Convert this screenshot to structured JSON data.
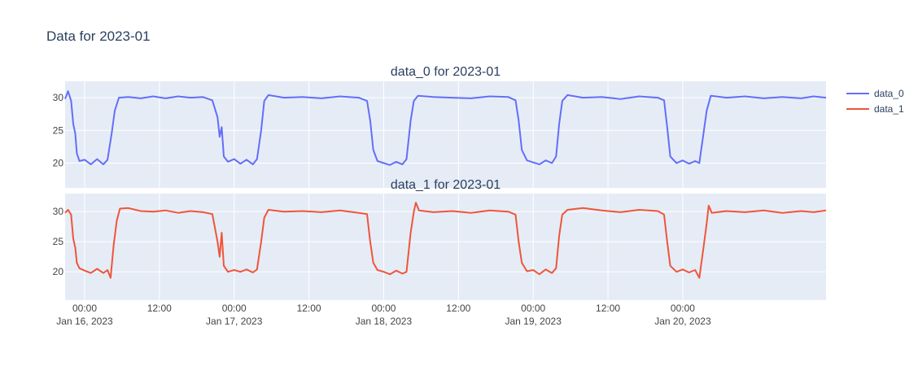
{
  "title": "Data for 2023-01",
  "chart_data": {
    "type": "line",
    "x_range": [
      "2023-01-15T20:52",
      "2023-01-20T23:00"
    ],
    "x_ticks": [
      {
        "t": "2023-01-16T00:00",
        "label": "00:00",
        "date": "Jan 16, 2023"
      },
      {
        "t": "2023-01-16T12:00",
        "label": "12:00",
        "date": ""
      },
      {
        "t": "2023-01-17T00:00",
        "label": "00:00",
        "date": "Jan 17, 2023"
      },
      {
        "t": "2023-01-17T12:00",
        "label": "12:00",
        "date": ""
      },
      {
        "t": "2023-01-18T00:00",
        "label": "00:00",
        "date": "Jan 18, 2023"
      },
      {
        "t": "2023-01-18T12:00",
        "label": "12:00",
        "date": ""
      },
      {
        "t": "2023-01-19T00:00",
        "label": "00:00",
        "date": "Jan 19, 2023"
      },
      {
        "t": "2023-01-19T12:00",
        "label": "12:00",
        "date": ""
      },
      {
        "t": "2023-01-20T00:00",
        "label": "00:00",
        "date": "Jan 20, 2023"
      }
    ],
    "y_ticks": [
      20,
      25,
      30
    ],
    "grid": true,
    "legend_position": "top-right",
    "subplots": [
      {
        "title": "data_0 for 2023-01",
        "ylim": [
          16.2,
          32.5
        ],
        "series": {
          "name": "data_0",
          "color": "#636efa",
          "points": [
            [
              "2023-01-15T20:52",
              29.8
            ],
            [
              "2023-01-15T21:20",
              31.0
            ],
            [
              "2023-01-15T21:50",
              29.5
            ],
            [
              "2023-01-15T22:10",
              26.0
            ],
            [
              "2023-01-15T22:30",
              24.5
            ],
            [
              "2023-01-15T22:45",
              21.5
            ],
            [
              "2023-01-15T23:10",
              20.3
            ],
            [
              "2023-01-16T00:00",
              20.5
            ],
            [
              "2023-01-16T01:00",
              19.8
            ],
            [
              "2023-01-16T02:00",
              20.6
            ],
            [
              "2023-01-16T03:00",
              19.8
            ],
            [
              "2023-01-16T03:40",
              20.5
            ],
            [
              "2023-01-16T04:20",
              24.5
            ],
            [
              "2023-01-16T04:50",
              28.0
            ],
            [
              "2023-01-16T05:30",
              30.0
            ],
            [
              "2023-01-16T07:00",
              30.1
            ],
            [
              "2023-01-16T09:00",
              29.9
            ],
            [
              "2023-01-16T11:00",
              30.2
            ],
            [
              "2023-01-16T13:00",
              29.9
            ],
            [
              "2023-01-16T15:00",
              30.2
            ],
            [
              "2023-01-16T17:00",
              30.0
            ],
            [
              "2023-01-16T19:00",
              30.1
            ],
            [
              "2023-01-16T20:30",
              29.6
            ],
            [
              "2023-01-16T21:20",
              27.0
            ],
            [
              "2023-01-16T21:40",
              24.0
            ],
            [
              "2023-01-16T22:00",
              25.5
            ],
            [
              "2023-01-16T22:20",
              21.0
            ],
            [
              "2023-01-16T23:00",
              20.2
            ],
            [
              "2023-01-17T00:00",
              20.6
            ],
            [
              "2023-01-17T01:00",
              19.9
            ],
            [
              "2023-01-17T02:00",
              20.5
            ],
            [
              "2023-01-17T03:00",
              19.8
            ],
            [
              "2023-01-17T03:40",
              20.6
            ],
            [
              "2023-01-17T04:20",
              25.0
            ],
            [
              "2023-01-17T04:50",
              29.5
            ],
            [
              "2023-01-17T05:30",
              30.4
            ],
            [
              "2023-01-17T08:00",
              30.0
            ],
            [
              "2023-01-17T11:00",
              30.1
            ],
            [
              "2023-01-17T14:00",
              29.9
            ],
            [
              "2023-01-17T17:00",
              30.2
            ],
            [
              "2023-01-17T20:00",
              30.0
            ],
            [
              "2023-01-17T21:20",
              29.5
            ],
            [
              "2023-01-17T21:50",
              26.5
            ],
            [
              "2023-01-17T22:20",
              22.0
            ],
            [
              "2023-01-17T23:00",
              20.3
            ],
            [
              "2023-01-18T00:00",
              20.0
            ],
            [
              "2023-01-18T01:00",
              19.7
            ],
            [
              "2023-01-18T02:00",
              20.2
            ],
            [
              "2023-01-18T03:00",
              19.8
            ],
            [
              "2023-01-18T03:40",
              20.6
            ],
            [
              "2023-01-18T04:20",
              26.5
            ],
            [
              "2023-01-18T04:50",
              29.5
            ],
            [
              "2023-01-18T05:30",
              30.3
            ],
            [
              "2023-01-18T08:00",
              30.1
            ],
            [
              "2023-01-18T11:00",
              30.0
            ],
            [
              "2023-01-18T14:00",
              29.9
            ],
            [
              "2023-01-18T17:00",
              30.2
            ],
            [
              "2023-01-18T20:00",
              30.1
            ],
            [
              "2023-01-18T21:10",
              29.6
            ],
            [
              "2023-01-18T21:40",
              26.5
            ],
            [
              "2023-01-18T22:10",
              22.0
            ],
            [
              "2023-01-18T23:00",
              20.4
            ],
            [
              "2023-01-19T00:00",
              20.1
            ],
            [
              "2023-01-19T01:00",
              19.8
            ],
            [
              "2023-01-19T02:00",
              20.4
            ],
            [
              "2023-01-19T03:00",
              20.0
            ],
            [
              "2023-01-19T03:40",
              21.0
            ],
            [
              "2023-01-19T04:10",
              26.0
            ],
            [
              "2023-01-19T04:40",
              29.5
            ],
            [
              "2023-01-19T05:30",
              30.4
            ],
            [
              "2023-01-19T08:00",
              30.0
            ],
            [
              "2023-01-19T11:00",
              30.1
            ],
            [
              "2023-01-19T14:00",
              29.8
            ],
            [
              "2023-01-19T17:00",
              30.2
            ],
            [
              "2023-01-19T20:00",
              30.0
            ],
            [
              "2023-01-19T21:00",
              29.6
            ],
            [
              "2023-01-19T21:30",
              25.5
            ],
            [
              "2023-01-19T22:00",
              21.0
            ],
            [
              "2023-01-19T23:00",
              20.0
            ],
            [
              "2023-01-20T00:00",
              20.4
            ],
            [
              "2023-01-20T01:00",
              19.9
            ],
            [
              "2023-01-20T02:00",
              20.3
            ],
            [
              "2023-01-20T02:40",
              20.0
            ],
            [
              "2023-01-20T03:20",
              24.5
            ],
            [
              "2023-01-20T03:50",
              28.0
            ],
            [
              "2023-01-20T04:30",
              30.3
            ],
            [
              "2023-01-20T07:00",
              30.0
            ],
            [
              "2023-01-20T10:00",
              30.2
            ],
            [
              "2023-01-20T13:00",
              29.9
            ],
            [
              "2023-01-20T16:00",
              30.1
            ],
            [
              "2023-01-20T19:00",
              29.9
            ],
            [
              "2023-01-20T21:00",
              30.2
            ],
            [
              "2023-01-20T23:00",
              30.0
            ]
          ]
        }
      },
      {
        "title": "data_1 for 2023-01",
        "ylim": [
          15.3,
          33.0
        ],
        "series": {
          "name": "data_1",
          "color": "#ef553b",
          "points": [
            [
              "2023-01-15T20:52",
              29.8
            ],
            [
              "2023-01-15T21:20",
              30.3
            ],
            [
              "2023-01-15T21:50",
              29.5
            ],
            [
              "2023-01-15T22:10",
              25.5
            ],
            [
              "2023-01-15T22:30",
              24.0
            ],
            [
              "2023-01-15T22:45",
              21.5
            ],
            [
              "2023-01-15T23:10",
              20.6
            ],
            [
              "2023-01-16T00:00",
              20.2
            ],
            [
              "2023-01-16T01:00",
              19.8
            ],
            [
              "2023-01-16T02:00",
              20.5
            ],
            [
              "2023-01-16T03:00",
              19.8
            ],
            [
              "2023-01-16T03:40",
              20.3
            ],
            [
              "2023-01-16T04:10",
              19.0
            ],
            [
              "2023-01-16T04:40",
              24.5
            ],
            [
              "2023-01-16T05:10",
              28.5
            ],
            [
              "2023-01-16T05:40",
              30.5
            ],
            [
              "2023-01-16T07:00",
              30.6
            ],
            [
              "2023-01-16T09:00",
              30.1
            ],
            [
              "2023-01-16T11:00",
              30.0
            ],
            [
              "2023-01-16T13:00",
              30.2
            ],
            [
              "2023-01-16T15:00",
              29.8
            ],
            [
              "2023-01-16T17:00",
              30.1
            ],
            [
              "2023-01-16T19:00",
              29.9
            ],
            [
              "2023-01-16T20:30",
              29.6
            ],
            [
              "2023-01-16T21:20",
              25.0
            ],
            [
              "2023-01-16T21:40",
              22.5
            ],
            [
              "2023-01-16T22:00",
              26.5
            ],
            [
              "2023-01-16T22:20",
              21.0
            ],
            [
              "2023-01-16T23:00",
              20.0
            ],
            [
              "2023-01-17T00:00",
              20.3
            ],
            [
              "2023-01-17T01:00",
              20.0
            ],
            [
              "2023-01-17T02:00",
              20.4
            ],
            [
              "2023-01-17T03:00",
              19.9
            ],
            [
              "2023-01-17T03:40",
              20.4
            ],
            [
              "2023-01-17T04:20",
              25.0
            ],
            [
              "2023-01-17T04:50",
              29.0
            ],
            [
              "2023-01-17T05:30",
              30.3
            ],
            [
              "2023-01-17T08:00",
              30.0
            ],
            [
              "2023-01-17T11:00",
              30.1
            ],
            [
              "2023-01-17T14:00",
              29.9
            ],
            [
              "2023-01-17T17:00",
              30.2
            ],
            [
              "2023-01-17T20:00",
              29.8
            ],
            [
              "2023-01-17T21:20",
              29.6
            ],
            [
              "2023-01-17T21:50",
              25.0
            ],
            [
              "2023-01-17T22:20",
              21.5
            ],
            [
              "2023-01-17T23:00",
              20.3
            ],
            [
              "2023-01-18T00:00",
              20.0
            ],
            [
              "2023-01-18T01:00",
              19.6
            ],
            [
              "2023-01-18T02:00",
              20.2
            ],
            [
              "2023-01-18T03:00",
              19.7
            ],
            [
              "2023-01-18T03:40",
              20.0
            ],
            [
              "2023-01-18T04:20",
              26.5
            ],
            [
              "2023-01-18T04:50",
              30.0
            ],
            [
              "2023-01-18T05:10",
              31.5
            ],
            [
              "2023-01-18T05:40",
              30.2
            ],
            [
              "2023-01-18T08:00",
              29.9
            ],
            [
              "2023-01-18T11:00",
              30.1
            ],
            [
              "2023-01-18T14:00",
              29.8
            ],
            [
              "2023-01-18T17:00",
              30.2
            ],
            [
              "2023-01-18T20:00",
              30.0
            ],
            [
              "2023-01-18T21:10",
              29.5
            ],
            [
              "2023-01-18T21:40",
              25.0
            ],
            [
              "2023-01-18T22:10",
              21.5
            ],
            [
              "2023-01-18T23:00",
              20.1
            ],
            [
              "2023-01-19T00:00",
              20.3
            ],
            [
              "2023-01-19T01:00",
              19.6
            ],
            [
              "2023-01-19T02:00",
              20.4
            ],
            [
              "2023-01-19T03:00",
              19.8
            ],
            [
              "2023-01-19T03:40",
              20.6
            ],
            [
              "2023-01-19T04:10",
              26.0
            ],
            [
              "2023-01-19T04:40",
              29.5
            ],
            [
              "2023-01-19T05:30",
              30.3
            ],
            [
              "2023-01-19T08:00",
              30.6
            ],
            [
              "2023-01-19T11:00",
              30.2
            ],
            [
              "2023-01-19T14:00",
              29.9
            ],
            [
              "2023-01-19T17:00",
              30.3
            ],
            [
              "2023-01-19T20:00",
              30.1
            ],
            [
              "2023-01-19T21:00",
              29.5
            ],
            [
              "2023-01-19T21:30",
              25.0
            ],
            [
              "2023-01-19T22:00",
              21.0
            ],
            [
              "2023-01-19T23:00",
              20.0
            ],
            [
              "2023-01-20T00:00",
              20.4
            ],
            [
              "2023-01-20T01:00",
              19.9
            ],
            [
              "2023-01-20T02:00",
              20.3
            ],
            [
              "2023-01-20T02:40",
              19.0
            ],
            [
              "2023-01-20T03:20",
              24.0
            ],
            [
              "2023-01-20T03:50",
              28.0
            ],
            [
              "2023-01-20T04:10",
              31.0
            ],
            [
              "2023-01-20T04:40",
              29.8
            ],
            [
              "2023-01-20T07:00",
              30.1
            ],
            [
              "2023-01-20T10:00",
              29.9
            ],
            [
              "2023-01-20T13:00",
              30.2
            ],
            [
              "2023-01-20T16:00",
              29.8
            ],
            [
              "2023-01-20T19:00",
              30.1
            ],
            [
              "2023-01-20T21:00",
              29.9
            ],
            [
              "2023-01-20T23:00",
              30.2
            ]
          ]
        }
      }
    ]
  }
}
